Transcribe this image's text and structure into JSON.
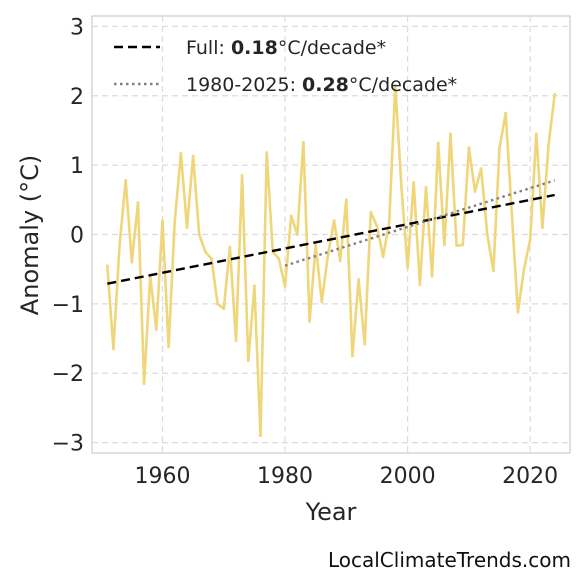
{
  "chart_data": {
    "type": "line",
    "xlabel": "Year",
    "ylabel": "Anomaly (°C)",
    "xlim": [
      1948.5,
      2026.5
    ],
    "ylim": [
      -3.15,
      3.15
    ],
    "xticks": [
      1960,
      1980,
      2000,
      2020
    ],
    "yticks": [
      -3,
      -2,
      -1,
      0,
      1,
      2,
      3
    ],
    "ytick_labels": [
      "−3",
      "−2",
      "−1",
      "0",
      "1",
      "2",
      "3"
    ],
    "grid": true,
    "legend_position": "top-left",
    "series": [
      {
        "style": "solid",
        "color": "#f0d67a",
        "x": [
          1951,
          1952,
          1953,
          1954,
          1955,
          1956,
          1957,
          1958,
          1959,
          1960,
          1961,
          1962,
          1963,
          1964,
          1965,
          1966,
          1967,
          1968,
          1969,
          1970,
          1971,
          1972,
          1973,
          1974,
          1975,
          1976,
          1977,
          1978,
          1979,
          1980,
          1981,
          1982,
          1983,
          1984,
          1985,
          1986,
          1987,
          1988,
          1989,
          1990,
          1991,
          1992,
          1993,
          1994,
          1995,
          1996,
          1997,
          1998,
          1999,
          2000,
          2001,
          2002,
          2003,
          2004,
          2005,
          2006,
          2007,
          2008,
          2009,
          2010,
          2011,
          2012,
          2013,
          2014,
          2015,
          2016,
          2017,
          2018,
          2019,
          2020,
          2021,
          2022,
          2023,
          2024
        ],
        "values": [
          -0.45,
          -1.65,
          -0.15,
          0.78,
          -0.4,
          0.46,
          -2.15,
          -0.6,
          -1.37,
          0.2,
          -1.62,
          0.18,
          1.17,
          0.1,
          1.13,
          0.0,
          -0.25,
          -0.35,
          -1.0,
          -1.07,
          -0.18,
          -1.53,
          0.85,
          -1.82,
          -0.74,
          -2.9,
          1.18,
          -0.25,
          -0.35,
          -0.75,
          0.27,
          0.0,
          1.33,
          -1.25,
          -0.15,
          -0.97,
          -0.3,
          0.2,
          -0.38,
          0.5,
          -1.75,
          -0.65,
          -1.58,
          0.32,
          0.12,
          -0.32,
          0.17,
          2.15,
          0.67,
          -0.48,
          0.75,
          -0.72,
          0.68,
          -0.6,
          1.32,
          -0.15,
          1.45,
          -0.16,
          -0.15,
          1.25,
          0.62,
          0.95,
          0.0,
          -0.52,
          1.25,
          1.75,
          0.3,
          -1.12,
          -0.5,
          -0.07,
          1.45,
          0.1,
          1.3,
          2.02
        ]
      },
      {
        "name": "Full: 0.18°C/decade*",
        "style": "dashed",
        "color": "#000000",
        "x": [
          1951,
          2024
        ],
        "values": [
          -0.71,
          0.57
        ]
      },
      {
        "name": "1980-2025: 0.28°C/decade*",
        "style": "dotted",
        "color": "#808080",
        "x": [
          1980,
          2024
        ],
        "values": [
          -0.45,
          0.78
        ]
      }
    ]
  },
  "legend": {
    "full_prefix": "Full: ",
    "full_value": "0.18",
    "full_suffix": "°C/decade*",
    "recent_prefix": "1980-2025: ",
    "recent_value": "0.28",
    "recent_suffix": "°C/decade*"
  },
  "watermark": "LocalClimateTrends.com"
}
